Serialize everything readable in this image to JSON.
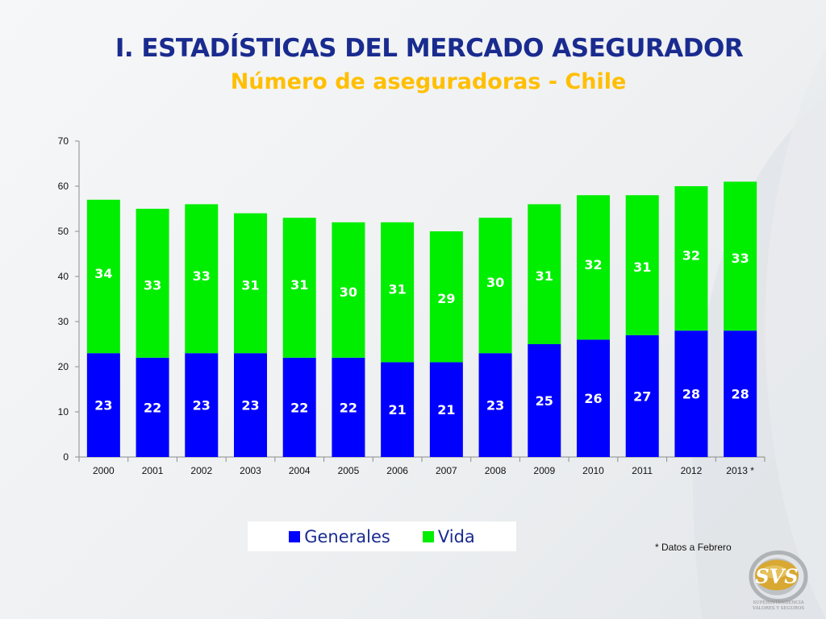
{
  "header": {
    "title": "I. ESTADÍSTICAS DEL MERCADO ASEGURADOR",
    "subtitle": "Número de aseguradoras - Chile"
  },
  "chart_data": {
    "type": "bar",
    "stacked": true,
    "categories": [
      "2000",
      "2001",
      "2002",
      "2003",
      "2004",
      "2005",
      "2006",
      "2007",
      "2008",
      "2009",
      "2010",
      "2011",
      "2012",
      "2013 *"
    ],
    "series": [
      {
        "name": "Generales",
        "color": "#0000ff",
        "values": [
          23,
          22,
          23,
          23,
          22,
          22,
          21,
          21,
          23,
          25,
          26,
          27,
          28,
          28
        ]
      },
      {
        "name": "Vida",
        "color": "#00ee00",
        "values": [
          34,
          33,
          33,
          31,
          31,
          30,
          31,
          29,
          30,
          31,
          32,
          31,
          32,
          33
        ]
      }
    ],
    "ylim": [
      0,
      70
    ],
    "yticks": [
      0,
      10,
      20,
      30,
      40,
      50,
      60,
      70
    ],
    "grid": false,
    "legend": "bottom"
  },
  "legend": {
    "generales_label": "Generales",
    "vida_label": "Vida"
  },
  "footnote": "* Datos a Febrero",
  "logo": {
    "text": "SVS",
    "caption_line1": "SUPERINTENDENCIA",
    "caption_line2": "VALORES Y SEGUROS"
  }
}
